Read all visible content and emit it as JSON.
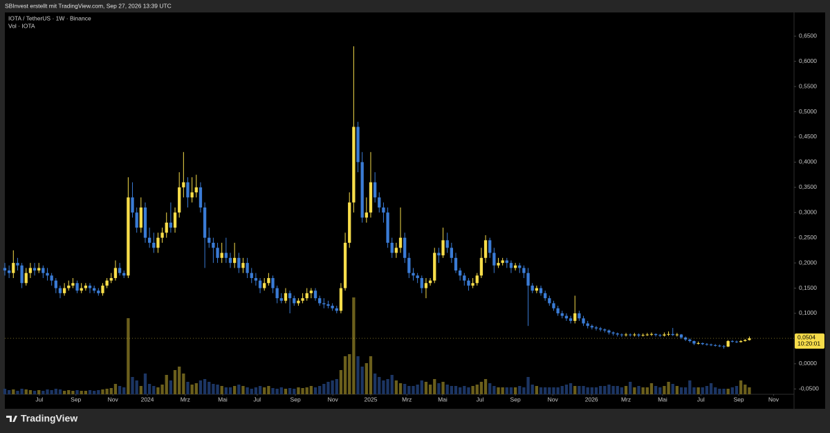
{
  "header": {
    "credit": "SBInvest erstellt mit TradingView.com, Sep 27, 2026 13:39 UTC"
  },
  "footer": {
    "brand": "TradingView"
  },
  "chart_data": {
    "type": "candlestick",
    "title": "IOTA / TetherUS · 1W · Binance",
    "volume_title": "Vol · IOTA",
    "up_color": "#f7dd4a",
    "down_color": "#3a7bd5",
    "volume_up_color": "#6b5f1c",
    "volume_down_color": "#1c3563",
    "xlim": [
      0,
      185.5
    ],
    "xticks": [
      {
        "value": 8.1,
        "label": "Jul"
      },
      {
        "value": 16.7,
        "label": "Sep"
      },
      {
        "value": 25.4,
        "label": "Nov"
      },
      {
        "value": 33.5,
        "label": "2024"
      },
      {
        "value": 42.4,
        "label": "Mrz"
      },
      {
        "value": 51.2,
        "label": "Mai"
      },
      {
        "value": 59.3,
        "label": "Jul"
      },
      {
        "value": 68.3,
        "label": "Sep"
      },
      {
        "value": 77.1,
        "label": "Nov"
      },
      {
        "value": 86,
        "label": "2025"
      },
      {
        "value": 94.5,
        "label": "Mrz"
      },
      {
        "value": 102.9,
        "label": "Mai"
      },
      {
        "value": 111.7,
        "label": "Jul"
      },
      {
        "value": 120,
        "label": "Sep"
      },
      {
        "value": 128.8,
        "label": "Nov"
      },
      {
        "value": 137.9,
        "label": "2026"
      },
      {
        "value": 146,
        "label": "Mrz"
      },
      {
        "value": 154.6,
        "label": "Mai"
      },
      {
        "value": 163.6,
        "label": "Jul"
      },
      {
        "value": 172.5,
        "label": "Sep"
      },
      {
        "value": 180.7,
        "label": "Nov"
      }
    ],
    "ylim": [
      -0.0606,
      0.697
    ],
    "yticks": [
      {
        "value": 0.65,
        "label": "0,6500"
      },
      {
        "value": 0.6,
        "label": "0,6000"
      },
      {
        "value": 0.55,
        "label": "0,5500"
      },
      {
        "value": 0.5,
        "label": "0,5000"
      },
      {
        "value": 0.45,
        "label": "0,4500"
      },
      {
        "value": 0.4,
        "label": "0,4000"
      },
      {
        "value": 0.35,
        "label": "0,3500"
      },
      {
        "value": 0.3,
        "label": "0,3000"
      },
      {
        "value": 0.25,
        "label": "0,2500"
      },
      {
        "value": 0.2,
        "label": "0,2000"
      },
      {
        "value": 0.15,
        "label": "0,1500"
      },
      {
        "value": 0.1,
        "label": "0,1000"
      },
      {
        "value": 0,
        "label": "0,0000"
      },
      {
        "value": -0.05,
        "label": "-0,0500"
      }
    ],
    "last_price": {
      "value": 0.0504,
      "label": "0,0504"
    },
    "countdown": "10:20:01",
    "candles": [
      [
        0.19,
        0.2,
        0.175,
        0.185
      ],
      [
        0.185,
        0.195,
        0.17,
        0.18
      ],
      [
        0.18,
        0.225,
        0.17,
        0.2
      ],
      [
        0.2,
        0.21,
        0.185,
        0.195
      ],
      [
        0.195,
        0.2,
        0.15,
        0.16
      ],
      [
        0.16,
        0.19,
        0.155,
        0.18
      ],
      [
        0.18,
        0.2,
        0.17,
        0.19
      ],
      [
        0.19,
        0.2,
        0.175,
        0.185
      ],
      [
        0.185,
        0.2,
        0.18,
        0.19
      ],
      [
        0.19,
        0.195,
        0.17,
        0.18
      ],
      [
        0.18,
        0.19,
        0.165,
        0.175
      ],
      [
        0.175,
        0.18,
        0.155,
        0.165
      ],
      [
        0.165,
        0.17,
        0.14,
        0.15
      ],
      [
        0.15,
        0.155,
        0.13,
        0.14
      ],
      [
        0.14,
        0.16,
        0.135,
        0.15
      ],
      [
        0.15,
        0.165,
        0.145,
        0.155
      ],
      [
        0.155,
        0.17,
        0.15,
        0.16
      ],
      [
        0.16,
        0.165,
        0.14,
        0.145
      ],
      [
        0.145,
        0.16,
        0.14,
        0.15
      ],
      [
        0.15,
        0.16,
        0.145,
        0.155
      ],
      [
        0.155,
        0.16,
        0.14,
        0.15
      ],
      [
        0.15,
        0.155,
        0.14,
        0.145
      ],
      [
        0.145,
        0.15,
        0.135,
        0.14
      ],
      [
        0.14,
        0.16,
        0.135,
        0.155
      ],
      [
        0.155,
        0.17,
        0.15,
        0.165
      ],
      [
        0.165,
        0.18,
        0.16,
        0.17
      ],
      [
        0.17,
        0.205,
        0.165,
        0.19
      ],
      [
        0.19,
        0.2,
        0.175,
        0.18
      ],
      [
        0.18,
        0.185,
        0.17,
        0.175
      ],
      [
        0.175,
        0.37,
        0.17,
        0.33
      ],
      [
        0.33,
        0.36,
        0.29,
        0.3
      ],
      [
        0.3,
        0.31,
        0.26,
        0.27
      ],
      [
        0.27,
        0.33,
        0.26,
        0.31
      ],
      [
        0.31,
        0.32,
        0.24,
        0.25
      ],
      [
        0.25,
        0.27,
        0.23,
        0.24
      ],
      [
        0.24,
        0.26,
        0.22,
        0.23
      ],
      [
        0.23,
        0.26,
        0.22,
        0.25
      ],
      [
        0.25,
        0.27,
        0.24,
        0.26
      ],
      [
        0.26,
        0.3,
        0.25,
        0.28
      ],
      [
        0.28,
        0.32,
        0.26,
        0.27
      ],
      [
        0.27,
        0.31,
        0.26,
        0.3
      ],
      [
        0.3,
        0.38,
        0.29,
        0.35
      ],
      [
        0.35,
        0.42,
        0.33,
        0.36
      ],
      [
        0.36,
        0.37,
        0.31,
        0.33
      ],
      [
        0.33,
        0.37,
        0.32,
        0.34
      ],
      [
        0.34,
        0.375,
        0.33,
        0.35
      ],
      [
        0.35,
        0.36,
        0.3,
        0.31
      ],
      [
        0.31,
        0.32,
        0.19,
        0.25
      ],
      [
        0.25,
        0.27,
        0.23,
        0.24
      ],
      [
        0.24,
        0.25,
        0.2,
        0.23
      ],
      [
        0.23,
        0.24,
        0.2,
        0.21
      ],
      [
        0.21,
        0.24,
        0.2,
        0.22
      ],
      [
        0.22,
        0.25,
        0.2,
        0.21
      ],
      [
        0.21,
        0.22,
        0.19,
        0.2
      ],
      [
        0.2,
        0.24,
        0.19,
        0.21
      ],
      [
        0.21,
        0.22,
        0.18,
        0.19
      ],
      [
        0.19,
        0.21,
        0.18,
        0.2
      ],
      [
        0.2,
        0.21,
        0.17,
        0.18
      ],
      [
        0.18,
        0.19,
        0.16,
        0.17
      ],
      [
        0.17,
        0.18,
        0.155,
        0.165
      ],
      [
        0.165,
        0.17,
        0.14,
        0.15
      ],
      [
        0.15,
        0.17,
        0.145,
        0.16
      ],
      [
        0.16,
        0.18,
        0.155,
        0.17
      ],
      [
        0.17,
        0.175,
        0.14,
        0.15
      ],
      [
        0.15,
        0.155,
        0.12,
        0.13
      ],
      [
        0.13,
        0.14,
        0.12,
        0.125
      ],
      [
        0.125,
        0.15,
        0.12,
        0.14
      ],
      [
        0.14,
        0.145,
        0.1,
        0.13
      ],
      [
        0.13,
        0.135,
        0.115,
        0.12
      ],
      [
        0.12,
        0.13,
        0.115,
        0.125
      ],
      [
        0.125,
        0.14,
        0.12,
        0.13
      ],
      [
        0.13,
        0.15,
        0.125,
        0.14
      ],
      [
        0.14,
        0.15,
        0.13,
        0.145
      ],
      [
        0.145,
        0.15,
        0.125,
        0.13
      ],
      [
        0.13,
        0.135,
        0.115,
        0.12
      ],
      [
        0.12,
        0.13,
        0.11,
        0.118
      ],
      [
        0.118,
        0.125,
        0.11,
        0.115
      ],
      [
        0.115,
        0.12,
        0.105,
        0.11
      ],
      [
        0.11,
        0.115,
        0.1,
        0.105
      ],
      [
        0.105,
        0.16,
        0.1,
        0.15
      ],
      [
        0.15,
        0.26,
        0.145,
        0.24
      ],
      [
        0.24,
        0.34,
        0.23,
        0.32
      ],
      [
        0.32,
        0.63,
        0.3,
        0.47
      ],
      [
        0.47,
        0.48,
        0.38,
        0.4
      ],
      [
        0.4,
        0.42,
        0.28,
        0.29
      ],
      [
        0.29,
        0.33,
        0.28,
        0.3
      ],
      [
        0.3,
        0.42,
        0.29,
        0.36
      ],
      [
        0.36,
        0.38,
        0.32,
        0.33
      ],
      [
        0.33,
        0.34,
        0.3,
        0.31
      ],
      [
        0.31,
        0.32,
        0.28,
        0.3
      ],
      [
        0.3,
        0.31,
        0.23,
        0.24
      ],
      [
        0.24,
        0.25,
        0.21,
        0.22
      ],
      [
        0.22,
        0.24,
        0.21,
        0.23
      ],
      [
        0.23,
        0.31,
        0.22,
        0.25
      ],
      [
        0.25,
        0.26,
        0.2,
        0.21
      ],
      [
        0.21,
        0.22,
        0.17,
        0.18
      ],
      [
        0.18,
        0.19,
        0.165,
        0.175
      ],
      [
        0.175,
        0.18,
        0.16,
        0.17
      ],
      [
        0.17,
        0.175,
        0.14,
        0.15
      ],
      [
        0.15,
        0.17,
        0.13,
        0.16
      ],
      [
        0.16,
        0.17,
        0.155,
        0.165
      ],
      [
        0.165,
        0.23,
        0.16,
        0.22
      ],
      [
        0.22,
        0.23,
        0.2,
        0.215
      ],
      [
        0.215,
        0.27,
        0.21,
        0.245
      ],
      [
        0.245,
        0.26,
        0.22,
        0.23
      ],
      [
        0.23,
        0.24,
        0.2,
        0.21
      ],
      [
        0.21,
        0.22,
        0.18,
        0.185
      ],
      [
        0.185,
        0.19,
        0.165,
        0.175
      ],
      [
        0.175,
        0.18,
        0.155,
        0.165
      ],
      [
        0.165,
        0.17,
        0.145,
        0.155
      ],
      [
        0.155,
        0.17,
        0.15,
        0.16
      ],
      [
        0.16,
        0.18,
        0.155,
        0.175
      ],
      [
        0.175,
        0.23,
        0.17,
        0.21
      ],
      [
        0.21,
        0.255,
        0.2,
        0.245
      ],
      [
        0.245,
        0.25,
        0.21,
        0.22
      ],
      [
        0.22,
        0.23,
        0.18,
        0.195
      ],
      [
        0.195,
        0.21,
        0.19,
        0.2
      ],
      [
        0.2,
        0.21,
        0.195,
        0.205
      ],
      [
        0.205,
        0.21,
        0.19,
        0.2
      ],
      [
        0.2,
        0.205,
        0.18,
        0.19
      ],
      [
        0.19,
        0.2,
        0.185,
        0.195
      ],
      [
        0.195,
        0.2,
        0.18,
        0.19
      ],
      [
        0.19,
        0.195,
        0.17,
        0.18
      ],
      [
        0.18,
        0.19,
        0.075,
        0.155
      ],
      [
        0.155,
        0.16,
        0.14,
        0.145
      ],
      [
        0.145,
        0.155,
        0.14,
        0.15
      ],
      [
        0.15,
        0.155,
        0.135,
        0.14
      ],
      [
        0.14,
        0.145,
        0.125,
        0.13
      ],
      [
        0.13,
        0.135,
        0.115,
        0.12
      ],
      [
        0.12,
        0.125,
        0.105,
        0.11
      ],
      [
        0.11,
        0.115,
        0.095,
        0.1
      ],
      [
        0.1,
        0.105,
        0.09,
        0.095
      ],
      [
        0.095,
        0.1,
        0.085,
        0.09
      ],
      [
        0.09,
        0.095,
        0.08,
        0.085
      ],
      [
        0.085,
        0.135,
        0.08,
        0.1
      ],
      [
        0.1,
        0.105,
        0.085,
        0.09
      ],
      [
        0.09,
        0.095,
        0.075,
        0.08
      ],
      [
        0.08,
        0.085,
        0.07,
        0.075
      ],
      [
        0.075,
        0.078,
        0.068,
        0.072
      ],
      [
        0.072,
        0.075,
        0.066,
        0.07
      ],
      [
        0.07,
        0.073,
        0.064,
        0.068
      ],
      [
        0.068,
        0.07,
        0.062,
        0.066
      ],
      [
        0.066,
        0.068,
        0.058,
        0.062
      ],
      [
        0.062,
        0.064,
        0.056,
        0.06
      ],
      [
        0.06,
        0.062,
        0.054,
        0.058
      ],
      [
        0.058,
        0.06,
        0.053,
        0.057
      ],
      [
        0.057,
        0.061,
        0.054,
        0.058
      ],
      [
        0.058,
        0.06,
        0.054,
        0.057
      ],
      [
        0.057,
        0.061,
        0.054,
        0.058
      ],
      [
        0.058,
        0.06,
        0.053,
        0.056
      ],
      [
        0.056,
        0.06,
        0.054,
        0.057
      ],
      [
        0.057,
        0.061,
        0.055,
        0.058
      ],
      [
        0.058,
        0.062,
        0.055,
        0.059
      ],
      [
        0.059,
        0.06,
        0.054,
        0.057
      ],
      [
        0.057,
        0.059,
        0.053,
        0.056
      ],
      [
        0.056,
        0.062,
        0.054,
        0.058
      ],
      [
        0.058,
        0.064,
        0.055,
        0.059
      ],
      [
        0.059,
        0.071,
        0.055,
        0.057
      ],
      [
        0.057,
        0.061,
        0.054,
        0.058
      ],
      [
        0.058,
        0.059,
        0.049,
        0.052
      ],
      [
        0.052,
        0.054,
        0.045,
        0.048
      ],
      [
        0.048,
        0.05,
        0.042,
        0.045
      ],
      [
        0.045,
        0.046,
        0.037,
        0.04
      ],
      [
        0.04,
        0.044,
        0.038,
        0.041
      ],
      [
        0.041,
        0.042,
        0.037,
        0.039
      ],
      [
        0.039,
        0.041,
        0.036,
        0.038
      ],
      [
        0.038,
        0.04,
        0.035,
        0.037
      ],
      [
        0.037,
        0.039,
        0.034,
        0.036
      ],
      [
        0.036,
        0.038,
        0.033,
        0.035
      ],
      [
        0.035,
        0.037,
        0.03,
        0.034
      ],
      [
        0.034,
        0.047,
        0.033,
        0.045
      ],
      [
        0.045,
        0.047,
        0.042,
        0.044
      ],
      [
        0.044,
        0.046,
        0.041,
        0.043
      ],
      [
        0.043,
        0.047,
        0.042,
        0.045
      ],
      [
        0.045,
        0.049,
        0.044,
        0.047
      ],
      [
        0.047,
        0.054,
        0.046,
        0.0504
      ]
    ],
    "volume": [
      8,
      6,
      7,
      5,
      8,
      7,
      6,
      5,
      6,
      5,
      7,
      6,
      8,
      7,
      5,
      6,
      5,
      6,
      5,
      5,
      6,
      5,
      6,
      7,
      8,
      9,
      15,
      12,
      10,
      110,
      25,
      20,
      12,
      30,
      15,
      12,
      10,
      14,
      28,
      20,
      35,
      40,
      30,
      18,
      14,
      16,
      20,
      22,
      18,
      15,
      14,
      12,
      10,
      10,
      12,
      14,
      12,
      10,
      8,
      10,
      12,
      10,
      12,
      9,
      8,
      10,
      8,
      9,
      8,
      10,
      9,
      10,
      12,
      10,
      12,
      15,
      18,
      20,
      22,
      35,
      55,
      58,
      140,
      55,
      40,
      45,
      55,
      30,
      25,
      20,
      22,
      28,
      20,
      16,
      15,
      12,
      12,
      14,
      20,
      18,
      14,
      22,
      16,
      18,
      14,
      12,
      12,
      10,
      12,
      10,
      12,
      14,
      18,
      22,
      16,
      12,
      10,
      10,
      10,
      10,
      10,
      12,
      10,
      25,
      14,
      12,
      10,
      10,
      10,
      10,
      10,
      12,
      14,
      16,
      12,
      12,
      12,
      10,
      10,
      10,
      12,
      12,
      14,
      12,
      12,
      10,
      12,
      18,
      10,
      12,
      10,
      10,
      16,
      12,
      10,
      12,
      18,
      15,
      12,
      10,
      10,
      20,
      10,
      10,
      10,
      12,
      16,
      10,
      8,
      8,
      8,
      10,
      12,
      20,
      14,
      10
    ]
  }
}
